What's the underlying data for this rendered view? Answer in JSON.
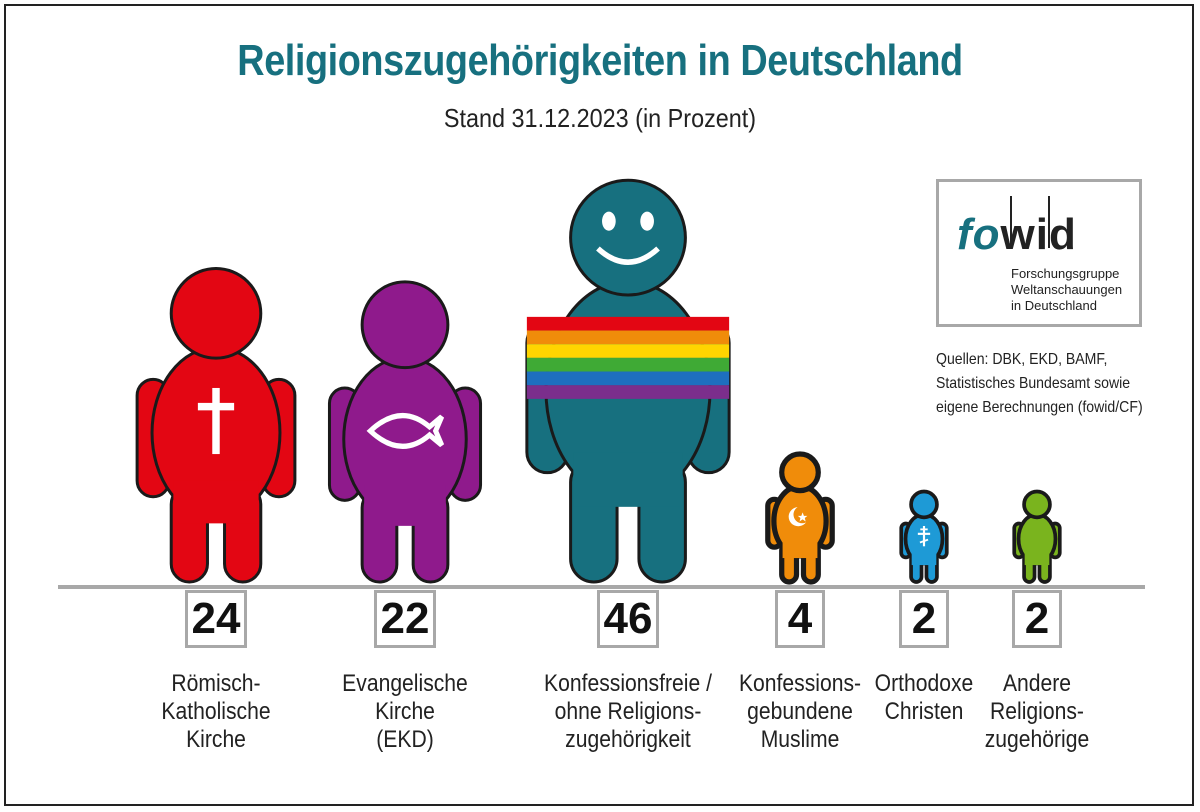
{
  "title": "Religionszugehörigkeiten in Deutschland",
  "subtitle": "Stand 31.12.2023  (in Prozent)",
  "logo": {
    "brand_fo": "fo",
    "brand_wid": "wid",
    "tagline": "Forschungsgruppe\nWeltanschauungen\nin Deutschland"
  },
  "sources": "Quellen: DBK, EKD, BAMF,\nStatistisches Bundesamt sowie\neigene Berechnungen (fowid/CF)",
  "colors": {
    "title": "#17707f",
    "catholic": "#e30613",
    "protestant": "#8f1a8c",
    "nonreligious": "#17707f",
    "muslim": "#f08c0a",
    "orthodox": "#1e9ad6",
    "other": "#7ab41e"
  },
  "chart_data": {
    "type": "bar",
    "title": "Religionszugehörigkeiten in Deutschland",
    "subtitle": "Stand 31.12.2023  (in Prozent)",
    "categories": [
      "Römisch-\nKatholische\nKirche",
      "Evangelische\nKirche\n(EKD)",
      "Konfessionsfreie /\nohne Religions-\nzugehörigkeit",
      "Konfessions-\ngebundene\nMuslime",
      "Orthodoxe\nChristen",
      "Andere\nReligions-\nzugehörige"
    ],
    "values": [
      24,
      22,
      46,
      4,
      2,
      2
    ],
    "value_labels": [
      "24",
      "22",
      "46",
      "4",
      "2",
      "2"
    ],
    "unit": "Prozent",
    "symbols": [
      "cross-icon",
      "fish-icon",
      "smiley-rainbow-icon",
      "crescent-star-icon",
      "orthodox-cross-icon",
      "none"
    ],
    "grid": false,
    "legend": "none"
  }
}
